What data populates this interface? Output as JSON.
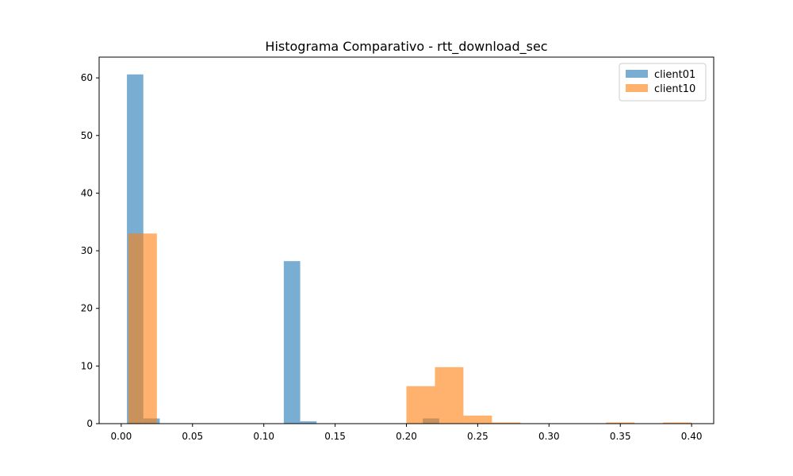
{
  "chart_data": {
    "type": "bar",
    "title": "Histograma Comparativo - rtt_download_sec",
    "xlabel": "",
    "ylabel": "",
    "xlim": [
      -0.0155,
      0.4155
    ],
    "ylim": [
      0,
      63.6
    ],
    "x_ticks": [
      0.0,
      0.05,
      0.1,
      0.15,
      0.2,
      0.25,
      0.3,
      0.35,
      0.4
    ],
    "x_tick_labels": [
      "0.00",
      "0.05",
      "0.10",
      "0.15",
      "0.20",
      "0.25",
      "0.30",
      "0.35",
      "0.40"
    ],
    "y_ticks": [
      0,
      10,
      20,
      30,
      40,
      50,
      60
    ],
    "y_tick_labels": [
      "0",
      "10",
      "20",
      "30",
      "40",
      "50",
      "60"
    ],
    "grid": false,
    "legend_position": "top-right",
    "series": [
      {
        "name": "client01",
        "color": "#1f77b4",
        "alpha": 0.6,
        "bins": [
          {
            "x0": 0.004,
            "x1": 0.0155,
            "count": 60.6
          },
          {
            "x0": 0.0155,
            "x1": 0.027,
            "count": 0.9
          },
          {
            "x0": 0.114,
            "x1": 0.1255,
            "count": 28.2
          },
          {
            "x0": 0.1255,
            "x1": 0.137,
            "count": 0.4
          },
          {
            "x0": 0.2115,
            "x1": 0.223,
            "count": 0.9
          }
        ]
      },
      {
        "name": "client10",
        "color": "#ff7f0e",
        "alpha": 0.6,
        "bins": [
          {
            "x0": 0.005,
            "x1": 0.025,
            "count": 33.0
          },
          {
            "x0": 0.2,
            "x1": 0.22,
            "count": 6.5
          },
          {
            "x0": 0.22,
            "x1": 0.24,
            "count": 9.8
          },
          {
            "x0": 0.24,
            "x1": 0.26,
            "count": 1.4
          },
          {
            "x0": 0.26,
            "x1": 0.28,
            "count": 0.2
          },
          {
            "x0": 0.34,
            "x1": 0.36,
            "count": 0.2
          },
          {
            "x0": 0.38,
            "x1": 0.4,
            "count": 0.2
          }
        ]
      }
    ]
  }
}
